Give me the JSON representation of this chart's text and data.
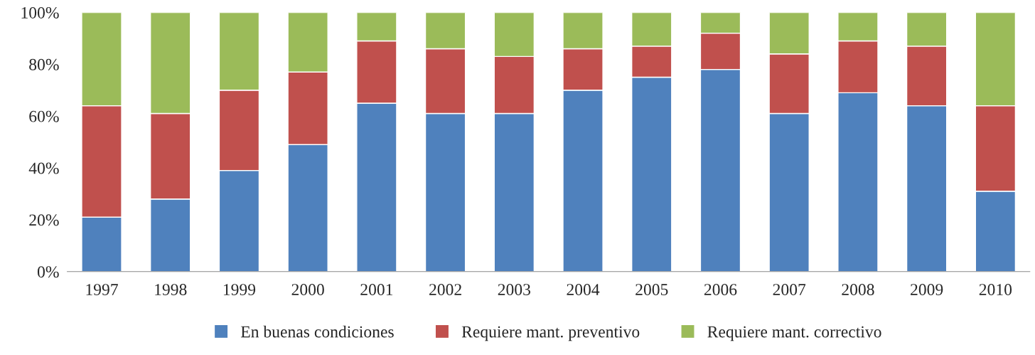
{
  "chart_data": {
    "type": "bar",
    "stacked": true,
    "categories": [
      "1997",
      "1998",
      "1999",
      "2000",
      "2001",
      "2002",
      "2003",
      "2004",
      "2005",
      "2006",
      "2007",
      "2008",
      "2009",
      "2010"
    ],
    "series": [
      {
        "name": "En buenas condiciones",
        "color": "#4f81bd",
        "values": [
          21,
          28,
          39,
          49,
          65,
          61,
          61,
          70,
          75,
          78,
          61,
          69,
          64,
          31
        ]
      },
      {
        "name": "Requiere mant. preventivo",
        "color": "#c0504d",
        "values": [
          43,
          33,
          31,
          28,
          24,
          25,
          22,
          16,
          12,
          14,
          23,
          20,
          23,
          33
        ]
      },
      {
        "name": "Requiere mant. correctivo",
        "color": "#9bbb59",
        "values": [
          36,
          39,
          30,
          23,
          11,
          14,
          17,
          14,
          13,
          8,
          16,
          11,
          13,
          36
        ]
      }
    ],
    "ylim": [
      0,
      100
    ],
    "yticks": [
      {
        "value": 0,
        "label": "0%"
      },
      {
        "value": 20,
        "label": "20%"
      },
      {
        "value": 40,
        "label": "40%"
      },
      {
        "value": 60,
        "label": "60%"
      },
      {
        "value": 80,
        "label": "80%"
      },
      {
        "value": 100,
        "label": "100%"
      }
    ],
    "grid": false,
    "legend": "bottom"
  }
}
